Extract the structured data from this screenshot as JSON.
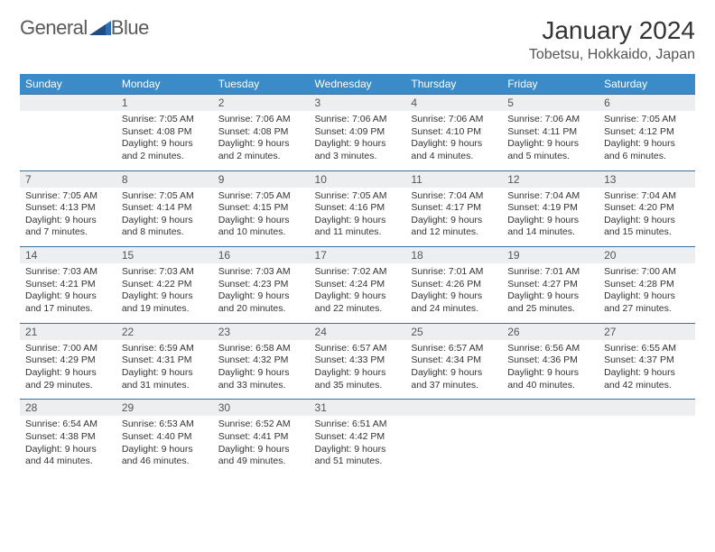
{
  "logo": {
    "word1": "General",
    "word2": "Blue"
  },
  "title": "January 2024",
  "location": "Tobetsu, Hokkaido, Japan",
  "colors": {
    "header_bg": "#3b8bc8",
    "header_text": "#ffffff",
    "daynum_bg": "#eceef0",
    "rule": "#3b6fa0",
    "body_text": "#333333",
    "logo_text": "#5a5a5a"
  },
  "day_names": [
    "Sunday",
    "Monday",
    "Tuesday",
    "Wednesday",
    "Thursday",
    "Friday",
    "Saturday"
  ],
  "weeks": [
    [
      null,
      {
        "n": "1",
        "sr": "Sunrise: 7:05 AM",
        "ss": "Sunset: 4:08 PM",
        "d1": "Daylight: 9 hours",
        "d2": "and 2 minutes."
      },
      {
        "n": "2",
        "sr": "Sunrise: 7:06 AM",
        "ss": "Sunset: 4:08 PM",
        "d1": "Daylight: 9 hours",
        "d2": "and 2 minutes."
      },
      {
        "n": "3",
        "sr": "Sunrise: 7:06 AM",
        "ss": "Sunset: 4:09 PM",
        "d1": "Daylight: 9 hours",
        "d2": "and 3 minutes."
      },
      {
        "n": "4",
        "sr": "Sunrise: 7:06 AM",
        "ss": "Sunset: 4:10 PM",
        "d1": "Daylight: 9 hours",
        "d2": "and 4 minutes."
      },
      {
        "n": "5",
        "sr": "Sunrise: 7:06 AM",
        "ss": "Sunset: 4:11 PM",
        "d1": "Daylight: 9 hours",
        "d2": "and 5 minutes."
      },
      {
        "n": "6",
        "sr": "Sunrise: 7:05 AM",
        "ss": "Sunset: 4:12 PM",
        "d1": "Daylight: 9 hours",
        "d2": "and 6 minutes."
      }
    ],
    [
      {
        "n": "7",
        "sr": "Sunrise: 7:05 AM",
        "ss": "Sunset: 4:13 PM",
        "d1": "Daylight: 9 hours",
        "d2": "and 7 minutes."
      },
      {
        "n": "8",
        "sr": "Sunrise: 7:05 AM",
        "ss": "Sunset: 4:14 PM",
        "d1": "Daylight: 9 hours",
        "d2": "and 8 minutes."
      },
      {
        "n": "9",
        "sr": "Sunrise: 7:05 AM",
        "ss": "Sunset: 4:15 PM",
        "d1": "Daylight: 9 hours",
        "d2": "and 10 minutes."
      },
      {
        "n": "10",
        "sr": "Sunrise: 7:05 AM",
        "ss": "Sunset: 4:16 PM",
        "d1": "Daylight: 9 hours",
        "d2": "and 11 minutes."
      },
      {
        "n": "11",
        "sr": "Sunrise: 7:04 AM",
        "ss": "Sunset: 4:17 PM",
        "d1": "Daylight: 9 hours",
        "d2": "and 12 minutes."
      },
      {
        "n": "12",
        "sr": "Sunrise: 7:04 AM",
        "ss": "Sunset: 4:19 PM",
        "d1": "Daylight: 9 hours",
        "d2": "and 14 minutes."
      },
      {
        "n": "13",
        "sr": "Sunrise: 7:04 AM",
        "ss": "Sunset: 4:20 PM",
        "d1": "Daylight: 9 hours",
        "d2": "and 15 minutes."
      }
    ],
    [
      {
        "n": "14",
        "sr": "Sunrise: 7:03 AM",
        "ss": "Sunset: 4:21 PM",
        "d1": "Daylight: 9 hours",
        "d2": "and 17 minutes."
      },
      {
        "n": "15",
        "sr": "Sunrise: 7:03 AM",
        "ss": "Sunset: 4:22 PM",
        "d1": "Daylight: 9 hours",
        "d2": "and 19 minutes."
      },
      {
        "n": "16",
        "sr": "Sunrise: 7:03 AM",
        "ss": "Sunset: 4:23 PM",
        "d1": "Daylight: 9 hours",
        "d2": "and 20 minutes."
      },
      {
        "n": "17",
        "sr": "Sunrise: 7:02 AM",
        "ss": "Sunset: 4:24 PM",
        "d1": "Daylight: 9 hours",
        "d2": "and 22 minutes."
      },
      {
        "n": "18",
        "sr": "Sunrise: 7:01 AM",
        "ss": "Sunset: 4:26 PM",
        "d1": "Daylight: 9 hours",
        "d2": "and 24 minutes."
      },
      {
        "n": "19",
        "sr": "Sunrise: 7:01 AM",
        "ss": "Sunset: 4:27 PM",
        "d1": "Daylight: 9 hours",
        "d2": "and 25 minutes."
      },
      {
        "n": "20",
        "sr": "Sunrise: 7:00 AM",
        "ss": "Sunset: 4:28 PM",
        "d1": "Daylight: 9 hours",
        "d2": "and 27 minutes."
      }
    ],
    [
      {
        "n": "21",
        "sr": "Sunrise: 7:00 AM",
        "ss": "Sunset: 4:29 PM",
        "d1": "Daylight: 9 hours",
        "d2": "and 29 minutes."
      },
      {
        "n": "22",
        "sr": "Sunrise: 6:59 AM",
        "ss": "Sunset: 4:31 PM",
        "d1": "Daylight: 9 hours",
        "d2": "and 31 minutes."
      },
      {
        "n": "23",
        "sr": "Sunrise: 6:58 AM",
        "ss": "Sunset: 4:32 PM",
        "d1": "Daylight: 9 hours",
        "d2": "and 33 minutes."
      },
      {
        "n": "24",
        "sr": "Sunrise: 6:57 AM",
        "ss": "Sunset: 4:33 PM",
        "d1": "Daylight: 9 hours",
        "d2": "and 35 minutes."
      },
      {
        "n": "25",
        "sr": "Sunrise: 6:57 AM",
        "ss": "Sunset: 4:34 PM",
        "d1": "Daylight: 9 hours",
        "d2": "and 37 minutes."
      },
      {
        "n": "26",
        "sr": "Sunrise: 6:56 AM",
        "ss": "Sunset: 4:36 PM",
        "d1": "Daylight: 9 hours",
        "d2": "and 40 minutes."
      },
      {
        "n": "27",
        "sr": "Sunrise: 6:55 AM",
        "ss": "Sunset: 4:37 PM",
        "d1": "Daylight: 9 hours",
        "d2": "and 42 minutes."
      }
    ],
    [
      {
        "n": "28",
        "sr": "Sunrise: 6:54 AM",
        "ss": "Sunset: 4:38 PM",
        "d1": "Daylight: 9 hours",
        "d2": "and 44 minutes."
      },
      {
        "n": "29",
        "sr": "Sunrise: 6:53 AM",
        "ss": "Sunset: 4:40 PM",
        "d1": "Daylight: 9 hours",
        "d2": "and 46 minutes."
      },
      {
        "n": "30",
        "sr": "Sunrise: 6:52 AM",
        "ss": "Sunset: 4:41 PM",
        "d1": "Daylight: 9 hours",
        "d2": "and 49 minutes."
      },
      {
        "n": "31",
        "sr": "Sunrise: 6:51 AM",
        "ss": "Sunset: 4:42 PM",
        "d1": "Daylight: 9 hours",
        "d2": "and 51 minutes."
      },
      null,
      null,
      null
    ]
  ]
}
